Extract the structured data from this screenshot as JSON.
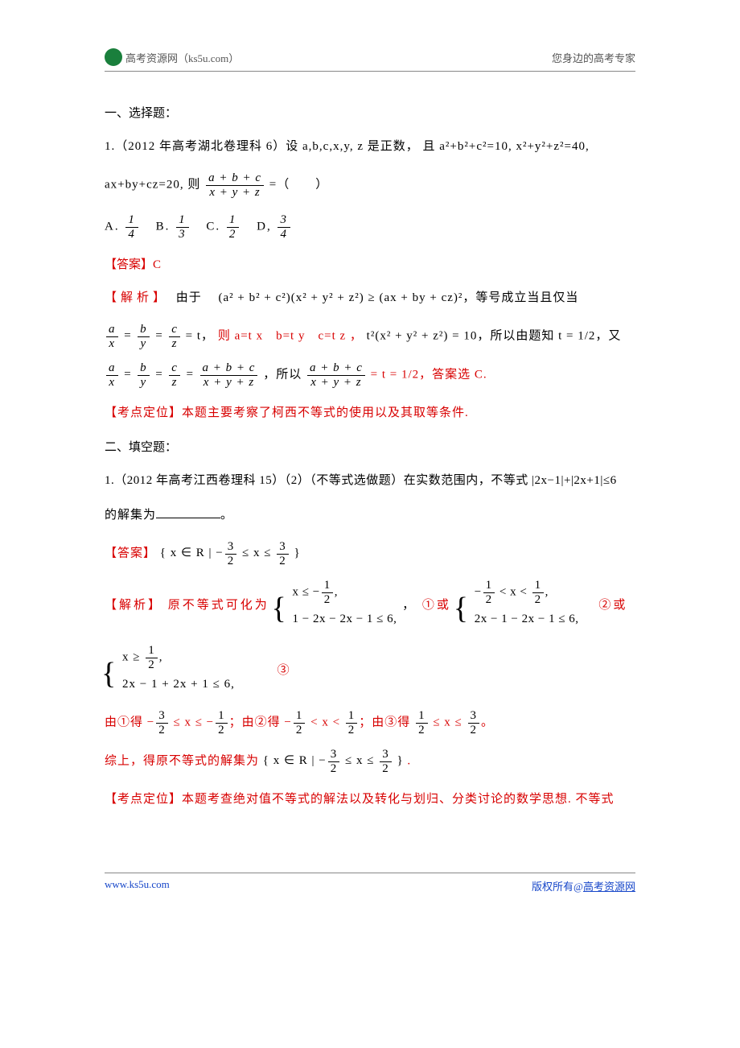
{
  "header": {
    "site_name": "高考资源网（ks5u.com）",
    "tagline": "您身边的高考专家",
    "logo_color": "#1a7f3c"
  },
  "colors": {
    "text": "#000000",
    "red": "#d80000",
    "link": "#1646c9",
    "rule": "#888888",
    "background": "#ffffff"
  },
  "section1": {
    "title": "一、选择题：",
    "q1_prefix": "1.（2012 年高考湖北卷理科 6）设 ",
    "q1_vars": "a,b,c,x,y, z 是正数， 且 a²+b²+c²=10, x²+y²+z²=40,",
    "q1_line2_left": "ax+by+cz=20, 则",
    "q1_line2_right": " =（　　）",
    "frac_top": "a + b + c",
    "frac_bot": "x + y + z",
    "options": {
      "A": {
        "label": "A.",
        "num": "1",
        "den": "4"
      },
      "B": {
        "label": "B.",
        "num": "1",
        "den": "3"
      },
      "C": {
        "label": "C.",
        "num": "1",
        "den": "2"
      },
      "D": {
        "label": "D,",
        "num": "3",
        "den": "4"
      }
    },
    "answer_label": "【答案】",
    "answer_value": "C",
    "analysis_label": "【解析】",
    "analysis_1": "由于  (a² + b² + c²)(x² + y² + z²) ≥ (ax + by + cz)²，等号成立当且仅当",
    "analysis_2a": "= t，",
    "analysis_2b": "则 a=t x b=t y c=t z ，",
    "analysis_2c": " t²(x² + y² + z²) = 10，所以由题知 t = 1/2，又",
    "analysis_3_mid": "，所以",
    "analysis_3_tail": " = t = 1/2，答案选 C.",
    "frac_a_x": {
      "num": "a",
      "den": "x"
    },
    "frac_b_y": {
      "num": "b",
      "den": "y"
    },
    "frac_c_z": {
      "num": "c",
      "den": "z"
    },
    "frac_abc_xyz": {
      "num": "a + b + c",
      "den": "x + y + z"
    },
    "pos_label": "【考点定位】",
    "pos_text": "本题主要考察了柯西不等式的使用以及其取等条件."
  },
  "section2": {
    "title": "二、填空题：",
    "q1_line1": "1.（2012 年高考江西卷理科 15）（2）（不等式选做题）在实数范围内，不等式 |2x−1|+|2x+1|≤6",
    "q1_line2a": "的解集为",
    "q1_line2b": "。",
    "answer_label": "【答案】",
    "answer_set_open": "{ x ∈ R | −",
    "answer_set_mid": " ≤ x ≤ ",
    "answer_set_close": " }",
    "three_halves": {
      "num": "3",
      "den": "2"
    },
    "analysis_label": "【解析】",
    "analysis_lead": "原不等式可化为",
    "case1_top": "x ≤ −",
    "case1_bot": "1 − 2x − 2x − 1 ≤ 6,",
    "conj1a": "，",
    "conj1b": "①或",
    "case2_top_a": "−",
    "case2_top_b": " < x < ",
    "case2_bot": "2x − 1 − 2x − 1 ≤ 6,",
    "conj2": "　②或",
    "case3_top": "x ≥ ",
    "case3_bot": "2x − 1 + 2x + 1 ≤ 6,",
    "conj3": "　　　③",
    "half": {
      "num": "1",
      "den": "2"
    },
    "result_line_a": "由①得 −",
    "result_line_b": " ≤ x ≤ −",
    "result_line_c": "；由②得 −",
    "result_line_d": " < x < ",
    "result_line_e": "；由③得 ",
    "result_line_f": " ≤ x ≤ ",
    "result_line_g": "。",
    "summary": "综上，得原不等式的解集为",
    "pos_label": "【考点定位】",
    "pos_text": "本题考查绝对值不等式的解法以及转化与划归、分类讨论的数学思想. 不等式"
  },
  "footer": {
    "left": "www.ks5u.com",
    "right_prefix": "版权所有@",
    "right_link": "高考资源网"
  }
}
